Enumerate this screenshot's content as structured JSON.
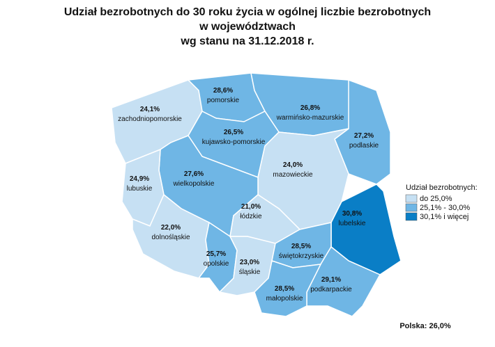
{
  "chart_data": {
    "type": "choropleth",
    "title": [
      "Udział bezrobotnych do 30 roku życia w ogólnej liczbie bezrobotnych",
      "w województwach",
      "wg stanu na 31.12.2018 r."
    ],
    "categories": [
      "zachodniopomorskie",
      "pomorskie",
      "warmińsko-mazurskie",
      "podlaskie",
      "kujawsko-pomorskie",
      "mazowieckie",
      "wielkopolskie",
      "lubuskie",
      "łódzkie",
      "lubelskie",
      "dolnośląskie",
      "opolskie",
      "śląskie",
      "świętokrzyskie",
      "podkarpackie",
      "małopolskie"
    ],
    "values": [
      24.1,
      28.6,
      26.8,
      27.2,
      26.5,
      24.0,
      27.6,
      24.9,
      21.0,
      30.8,
      22.0,
      25.7,
      23.0,
      28.5,
      29.1,
      28.5
    ],
    "value_labels": [
      "24,1%",
      "28,6%",
      "26,8%",
      "27,2%",
      "26,5%",
      "24,0%",
      "27,6%",
      "24,9%",
      "21,0%",
      "30,8%",
      "22,0%",
      "25,7%",
      "23,0%",
      "28,5%",
      "29,1%",
      "28,5%"
    ],
    "colors": [
      "#c6e0f3",
      "#6fb6e5",
      "#6fb6e5",
      "#6fb6e5",
      "#6fb6e5",
      "#c6e0f3",
      "#6fb6e5",
      "#c6e0f3",
      "#c6e0f3",
      "#0a7ec6",
      "#c6e0f3",
      "#6fb6e5",
      "#c6e0f3",
      "#6fb6e5",
      "#6fb6e5",
      "#6fb6e5"
    ],
    "legend": {
      "title": "Udział bezrobotnych:",
      "items": [
        {
          "label": "do 25,0%",
          "color": "#c6e0f3"
        },
        {
          "label": "25,1% - 30,0%",
          "color": "#6fb6e5"
        },
        {
          "label": "30,1% i więcej",
          "color": "#0a7ec6"
        }
      ]
    },
    "summary": "Polska: 26,0%"
  }
}
